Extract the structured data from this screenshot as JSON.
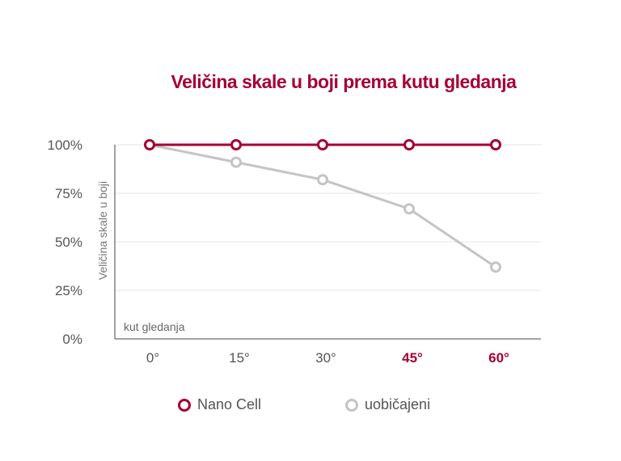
{
  "chart_data": {
    "type": "line",
    "title": "Veličina skale u boji prema kutu gledanja",
    "ylabel": "Veličina skale u boji",
    "xlabel": "kut gledanja",
    "categories": [
      "0°",
      "15°",
      "30°",
      "45°",
      "60°"
    ],
    "highlighted_categories": [
      "45°",
      "60°"
    ],
    "ylim": [
      0,
      100
    ],
    "yticks": [
      "0%",
      "25%",
      "50%",
      "75%",
      "100%"
    ],
    "grid": true,
    "legend_position": "bottom",
    "series": [
      {
        "name": "Nano Cell",
        "color": "#a50034",
        "values": [
          100,
          100,
          100,
          100,
          100
        ]
      },
      {
        "name": "uobičajeni",
        "color": "#c4c4c4",
        "values": [
          100,
          91,
          82,
          67,
          37
        ]
      }
    ]
  }
}
